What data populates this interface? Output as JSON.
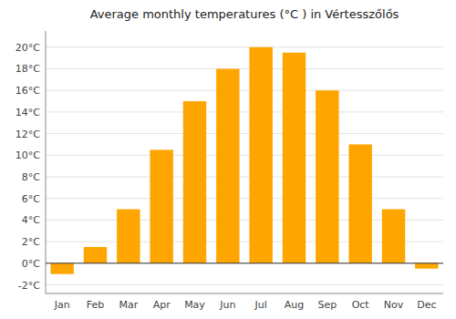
{
  "chart_data": {
    "type": "bar",
    "title": "Average monthly temperatures (°C ) in Vértesszőlős",
    "categories": [
      "Jan",
      "Feb",
      "Mar",
      "Apr",
      "May",
      "Jun",
      "Jul",
      "Aug",
      "Sep",
      "Oct",
      "Nov",
      "Dec"
    ],
    "values": [
      -1.0,
      1.5,
      5.0,
      10.5,
      15.0,
      18.0,
      20.0,
      19.5,
      16.0,
      11.0,
      5.0,
      -0.5
    ],
    "color": "#FFA500",
    "ylim": [
      -2.8,
      21.5
    ],
    "yticks": [
      {
        "value": -2,
        "label": "-2°C"
      },
      {
        "value": 0,
        "label": "0°C"
      },
      {
        "value": 2,
        "label": "2°C"
      },
      {
        "value": 4,
        "label": "4°C"
      },
      {
        "value": 6,
        "label": "6°C"
      },
      {
        "value": 8,
        "label": "8°C"
      },
      {
        "value": 10,
        "label": "10°C"
      },
      {
        "value": 12,
        "label": "12°C"
      },
      {
        "value": 14,
        "label": "14°C"
      },
      {
        "value": 16,
        "label": "16°C"
      },
      {
        "value": 18,
        "label": "18°C"
      },
      {
        "value": 20,
        "label": "20°C"
      }
    ],
    "grid": true
  }
}
